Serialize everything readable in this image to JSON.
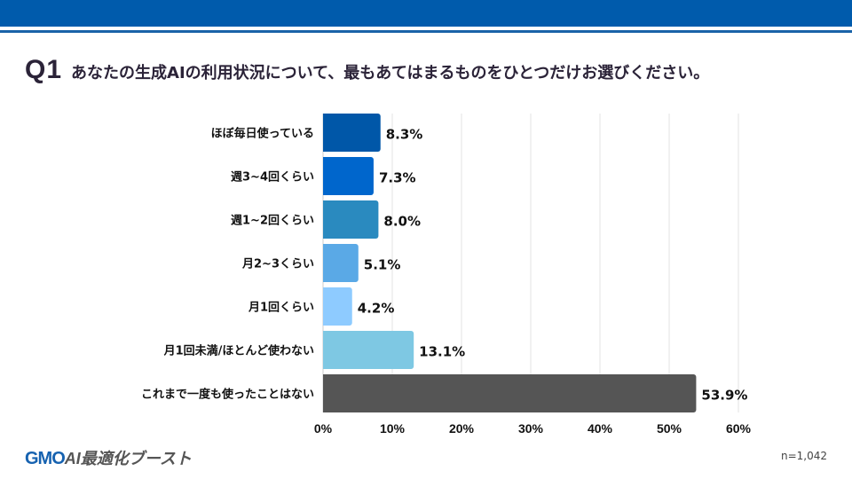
{
  "header": {
    "q_label": "Q1",
    "question": "あなたの生成AIの利用状況について、最もあてはまるものをひとつだけお選びください。"
  },
  "chart_data": {
    "type": "bar",
    "orientation": "horizontal",
    "categories": [
      "ほぼ毎日使っている",
      "週3~4回くらい",
      "週1~2回くらい",
      "月2~3くらい",
      "月1回くらい",
      "月1回未満/ほとんど使わない",
      "これまで一度も使ったことはない"
    ],
    "values": [
      8.3,
      7.3,
      8.0,
      5.1,
      4.2,
      13.1,
      53.9
    ],
    "value_labels": [
      "8.3%",
      "7.3%",
      "8.0%",
      "5.1%",
      "4.2%",
      "13.1%",
      "53.9%"
    ],
    "colors": [
      "#0057a8",
      "#0066cc",
      "#2a8abf",
      "#5aa9e6",
      "#8ecbff",
      "#7ec8e3",
      "#555555"
    ],
    "xlim": [
      0,
      60
    ],
    "ticks": [
      "0%",
      "10%",
      "20%",
      "30%",
      "40%",
      "50%",
      "60%"
    ],
    "grid": true
  },
  "footer": {
    "logo_gmo": "GMO",
    "logo_rest": "AI最適化ブースト",
    "sample": "n=1,042"
  }
}
